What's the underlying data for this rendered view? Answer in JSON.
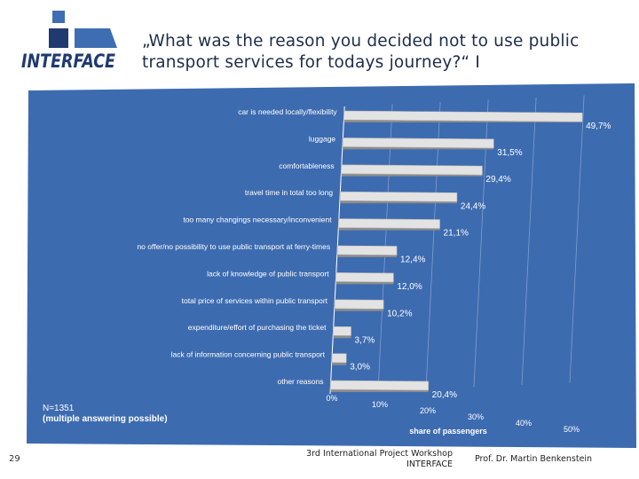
{
  "header": {
    "logo_text": "INTERFACE",
    "title": "„What was the reason you decided not to use public transport services for todays journey?“ I"
  },
  "chart_data": {
    "type": "bar",
    "orientation": "horizontal",
    "categories": [
      "car is needed locally/flexibility",
      "luggage",
      "comfortableness",
      "travel time in total too long",
      "too many changings necessary/inconvenient",
      "no offer/no possibility to use public transport at ferry-times",
      "lack of knowledge of public transport",
      "total price of services within public transport",
      "expenditure/effort of purchasing the ticket",
      "lack of information concerning public transport",
      "other reasons"
    ],
    "values": [
      49.7,
      31.5,
      29.4,
      24.4,
      21.1,
      12.4,
      12.0,
      10.2,
      3.7,
      3.0,
      20.4
    ],
    "value_labels": [
      "49,7%",
      "31,5%",
      "29,4%",
      "24,4%",
      "21,1%",
      "12,4%",
      "12,0%",
      "10,2%",
      "3,7%",
      "3,0%",
      "20,4%"
    ],
    "xlim": [
      0,
      50
    ],
    "x_ticks": [
      "0%",
      "10%",
      "20%",
      "30%",
      "40%",
      "50%"
    ],
    "xlabel": "share of passengers",
    "grid": true
  },
  "note": {
    "n": "N=1351",
    "multiple": "(multiple answering possible)"
  },
  "footer": {
    "page_number": "29",
    "event_line1": "3rd International Project Workshop",
    "event_line2": "INTERFACE",
    "author": "Prof. Dr. Martin Benkenstein"
  },
  "colors": {
    "panel": "#3d6bb0",
    "bar": "#e3e3e3",
    "bar_shadow": "#8c8c8c",
    "text": "#ffffff",
    "logo_navy": "#1f3a6e",
    "logo_blue": "#3f6db3"
  }
}
